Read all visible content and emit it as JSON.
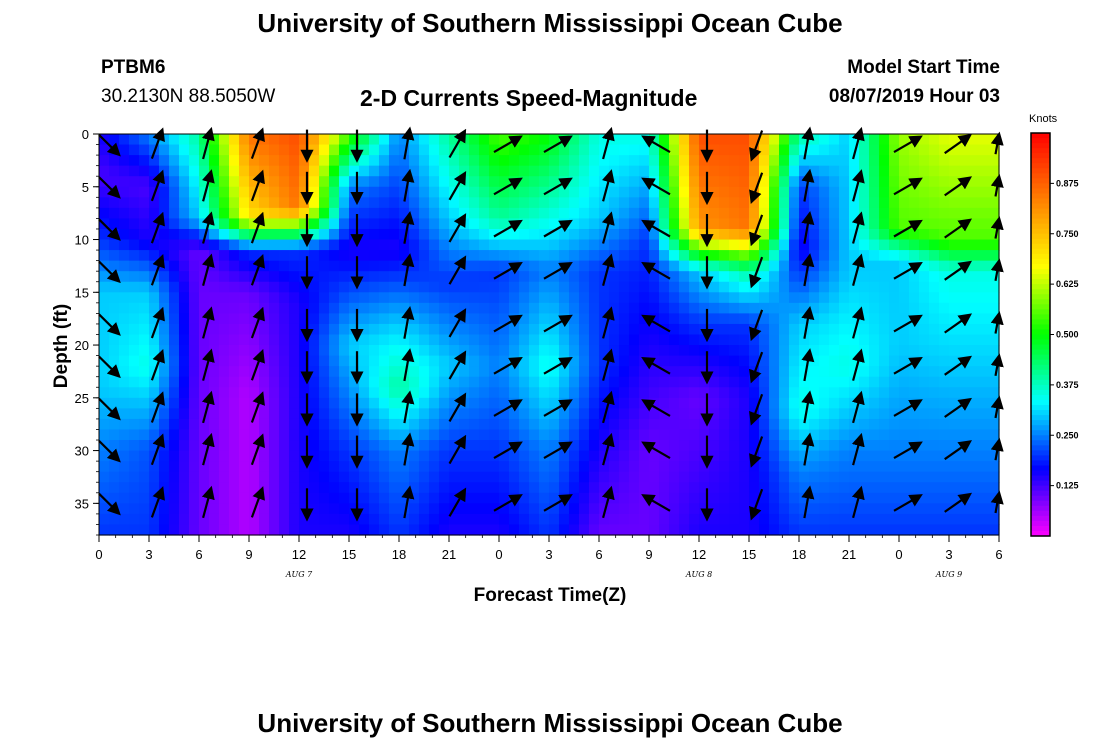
{
  "header": {
    "title": "University of Southern Mississippi Ocean Cube",
    "station_id": "PTBM6",
    "station_location": "30.2130N 88.5050W",
    "chart_title": "2-D Currents Speed-Magnitude",
    "model_label": "Model Start Time",
    "model_time": "08/07/2019 Hour 03"
  },
  "footer": {
    "title": "University of Southern Mississippi Ocean Cube"
  },
  "chart_data": {
    "type": "heatmap",
    "title": "2-D Currents Speed-Magnitude",
    "xlabel": "Forecast Time(Z)",
    "ylabel": "Depth (ft)",
    "units": "Knots",
    "x_ticks": [
      "0",
      "3",
      "6",
      "9",
      "12",
      "15",
      "18",
      "21",
      "0",
      "3",
      "6",
      "9",
      "12",
      "15",
      "18",
      "21",
      "0",
      "3",
      "6"
    ],
    "date_labels": [
      {
        "text": "AUG 7",
        "tick_index": 4
      },
      {
        "text": "AUG 8",
        "tick_index": 12
      },
      {
        "text": "AUG 9",
        "tick_index": 17
      }
    ],
    "y_ticks": [
      0,
      5,
      10,
      15,
      20,
      25,
      30,
      35
    ],
    "ylim": [
      0,
      38
    ],
    "x_range_hours": [
      0,
      54
    ],
    "colorbar": {
      "range": [
        0,
        1.0
      ],
      "ticks": [
        "0.125",
        "0.250",
        "0.375",
        "0.500",
        "0.625",
        "0.750",
        "0.875"
      ],
      "colors": [
        "#ff00ff",
        "#8000ff",
        "#0000ff",
        "#0080ff",
        "#00ffff",
        "#00ff80",
        "#00ff00",
        "#80ff00",
        "#ffff00",
        "#ffc000",
        "#ff8000",
        "#ff4000",
        "#ff0000"
      ]
    },
    "columns": [
      {
        "t": 0,
        "profile": [
          [
            0,
            0.15
          ],
          [
            4,
            0.12
          ],
          [
            10,
            0.2
          ],
          [
            15,
            0.3
          ],
          [
            24,
            0.3
          ],
          [
            30,
            0.25
          ],
          [
            38,
            0.2
          ]
        ],
        "dir": 130
      },
      {
        "t": 3,
        "profile": [
          [
            0,
            0.25
          ],
          [
            5,
            0.12
          ],
          [
            10,
            0.15
          ],
          [
            15,
            0.3
          ],
          [
            22,
            0.35
          ],
          [
            30,
            0.22
          ],
          [
            38,
            0.2
          ]
        ],
        "dir": 20
      },
      {
        "t": 6,
        "profile": [
          [
            0,
            0.4
          ],
          [
            8,
            0.3
          ],
          [
            11,
            0.1
          ],
          [
            18,
            0.1
          ],
          [
            30,
            0.1
          ],
          [
            38,
            0.1
          ]
        ],
        "dir": 15
      },
      {
        "t": 9,
        "profile": [
          [
            0,
            0.85
          ],
          [
            8,
            0.7
          ],
          [
            11,
            0.2
          ],
          [
            15,
            0.1
          ],
          [
            25,
            0.05
          ],
          [
            38,
            0.05
          ]
        ],
        "dir": 20
      },
      {
        "t": 12,
        "profile": [
          [
            0,
            0.9
          ],
          [
            7,
            0.85
          ],
          [
            11,
            0.2
          ],
          [
            16,
            0.15
          ],
          [
            25,
            0.15
          ],
          [
            38,
            0.15
          ]
        ],
        "dir": 180
      },
      {
        "t": 15,
        "profile": [
          [
            0,
            0.55
          ],
          [
            5,
            0.25
          ],
          [
            11,
            0.15
          ],
          [
            20,
            0.3
          ],
          [
            30,
            0.2
          ],
          [
            38,
            0.15
          ]
        ],
        "dir": 180
      },
      {
        "t": 18,
        "profile": [
          [
            0,
            0.25
          ],
          [
            6,
            0.2
          ],
          [
            11,
            0.15
          ],
          [
            18,
            0.3
          ],
          [
            24,
            0.4
          ],
          [
            30,
            0.25
          ],
          [
            38,
            0.2
          ]
        ],
        "dir": 10
      },
      {
        "t": 21,
        "profile": [
          [
            0,
            0.4
          ],
          [
            8,
            0.3
          ],
          [
            14,
            0.2
          ],
          [
            22,
            0.3
          ],
          [
            30,
            0.2
          ],
          [
            38,
            0.15
          ]
        ],
        "dir": 30
      },
      {
        "t": 24,
        "profile": [
          [
            0,
            0.55
          ],
          [
            8,
            0.4
          ],
          [
            13,
            0.2
          ],
          [
            22,
            0.25
          ],
          [
            30,
            0.2
          ],
          [
            38,
            0.15
          ]
        ],
        "dir": 60
      },
      {
        "t": 27,
        "profile": [
          [
            0,
            0.5
          ],
          [
            8,
            0.35
          ],
          [
            13,
            0.25
          ],
          [
            22,
            0.35
          ],
          [
            30,
            0.25
          ],
          [
            38,
            0.2
          ]
        ],
        "dir": 60
      },
      {
        "t": 30,
        "profile": [
          [
            0,
            0.35
          ],
          [
            8,
            0.3
          ],
          [
            13,
            0.2
          ],
          [
            22,
            0.2
          ],
          [
            38,
            0.1
          ]
        ],
        "dir": 15
      },
      {
        "t": 33,
        "profile": [
          [
            0,
            0.35
          ],
          [
            10,
            0.2
          ],
          [
            20,
            0.15
          ],
          [
            30,
            0.1
          ],
          [
            38,
            0.1
          ]
        ],
        "dir": 300
      },
      {
        "t": 36,
        "profile": [
          [
            0,
            0.9
          ],
          [
            9,
            0.8
          ],
          [
            13,
            0.3
          ],
          [
            18,
            0.2
          ],
          [
            25,
            0.1
          ],
          [
            38,
            0.15
          ]
        ],
        "dir": 180
      },
      {
        "t": 39,
        "profile": [
          [
            0,
            0.9
          ],
          [
            9,
            0.85
          ],
          [
            13,
            0.4
          ],
          [
            18,
            0.2
          ],
          [
            25,
            0.15
          ],
          [
            38,
            0.15
          ]
        ],
        "dir": 200
      },
      {
        "t": 42,
        "profile": [
          [
            0,
            0.4
          ],
          [
            5,
            0.2
          ],
          [
            11,
            0.15
          ],
          [
            18,
            0.3
          ],
          [
            26,
            0.35
          ],
          [
            32,
            0.25
          ],
          [
            38,
            0.2
          ]
        ],
        "dir": 10
      },
      {
        "t": 45,
        "profile": [
          [
            0,
            0.3
          ],
          [
            8,
            0.3
          ],
          [
            13,
            0.3
          ],
          [
            22,
            0.35
          ],
          [
            30,
            0.25
          ],
          [
            38,
            0.2
          ]
        ],
        "dir": 15
      },
      {
        "t": 48,
        "profile": [
          [
            0,
            0.6
          ],
          [
            9,
            0.55
          ],
          [
            12,
            0.3
          ],
          [
            20,
            0.3
          ],
          [
            30,
            0.25
          ],
          [
            38,
            0.2
          ]
        ],
        "dir": 60
      },
      {
        "t": 51,
        "profile": [
          [
            0,
            0.65
          ],
          [
            10,
            0.55
          ],
          [
            13,
            0.35
          ],
          [
            22,
            0.3
          ],
          [
            30,
            0.25
          ],
          [
            38,
            0.2
          ]
        ],
        "dir": 55
      },
      {
        "t": 54,
        "profile": [
          [
            0,
            0.65
          ],
          [
            10,
            0.55
          ],
          [
            13,
            0.35
          ],
          [
            22,
            0.3
          ],
          [
            30,
            0.25
          ],
          [
            38,
            0.2
          ]
        ],
        "dir": 50
      }
    ]
  }
}
